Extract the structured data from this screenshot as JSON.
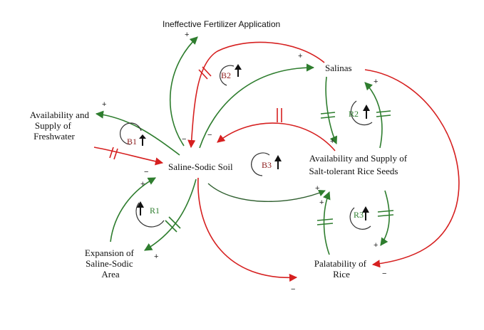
{
  "nodes": {
    "ineffective_fertilizer": "Ineffective Fertilizer Application",
    "salinas": "Salinas",
    "freshwater": [
      "Availability and",
      "Supply of",
      "Freshwater"
    ],
    "saline_sodic_soil": "Saline-Sodic Soil",
    "salt_tolerant_seeds": [
      "Availability and Supply of",
      "Salt-tolerant Rice Seeds"
    ],
    "expansion": [
      "Expansion of",
      "Saline-Sodic",
      "Area"
    ],
    "palatability": [
      "Palatability of",
      "Rice"
    ]
  },
  "loops": {
    "b1": "B1",
    "b2": "B2",
    "b3": "B3",
    "r1": "R1",
    "r2": "R2",
    "r3": "R3"
  },
  "polarity": {
    "plus": "+",
    "minus": "−"
  },
  "colors": {
    "positive_link": "#2e7d2e",
    "negative_link": "#d62020",
    "balancing_label": "#8b1a1a",
    "reinforcing_label": "#2e7d2e"
  }
}
